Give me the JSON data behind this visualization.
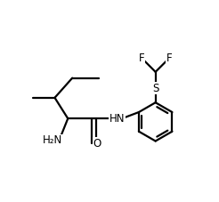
{
  "background_color": "#ffffff",
  "line_color": "#000000",
  "text_color": "#000000",
  "line_width": 1.6,
  "font_size": 8.5,
  "figsize": [
    2.46,
    2.27
  ],
  "dpi": 100,
  "xlim": [
    0,
    10
  ],
  "ylim": [
    0,
    9.2
  ]
}
